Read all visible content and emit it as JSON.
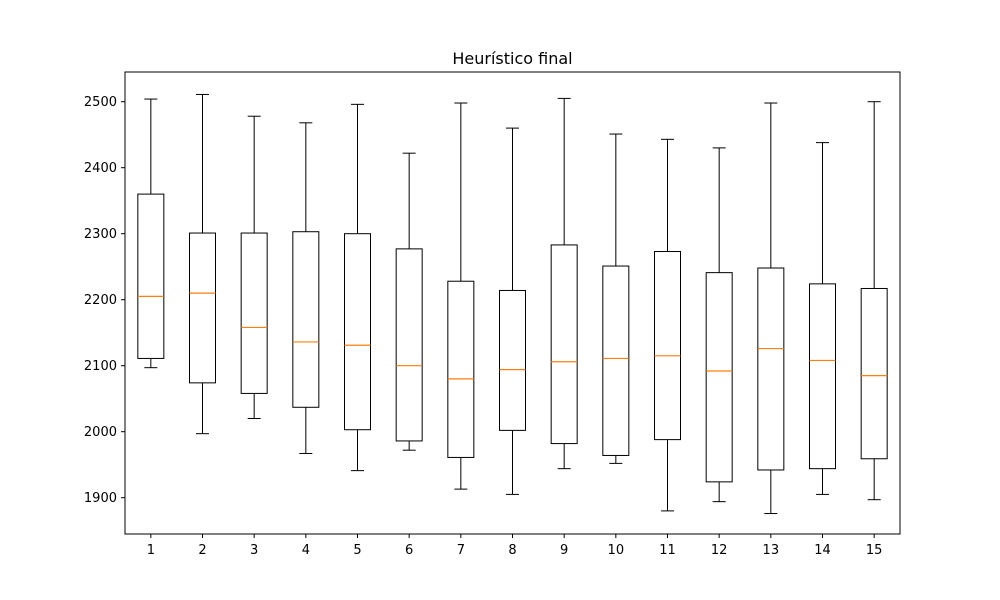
{
  "chart_data": {
    "type": "boxplot",
    "title": "Heurístico final",
    "xlabel": "",
    "ylabel": "",
    "categories": [
      "1",
      "2",
      "3",
      "4",
      "5",
      "6",
      "7",
      "8",
      "9",
      "10",
      "11",
      "12",
      "13",
      "14",
      "15"
    ],
    "ylim": [
      1845,
      2545
    ],
    "yticks": [
      1900,
      2000,
      2100,
      2200,
      2300,
      2400,
      2500
    ],
    "grid": false,
    "colors": {
      "box": "#000000",
      "median": "#ff7f0e",
      "whisker": "#000000"
    },
    "boxes": [
      {
        "label": "1",
        "whislo": 2097,
        "q1": 2111,
        "med": 2205,
        "q3": 2360,
        "whishi": 2504
      },
      {
        "label": "2",
        "whislo": 1997,
        "q1": 2074,
        "med": 2210,
        "q3": 2301,
        "whishi": 2511
      },
      {
        "label": "3",
        "whislo": 2020,
        "q1": 2058,
        "med": 2158,
        "q3": 2301,
        "whishi": 2478
      },
      {
        "label": "4",
        "whislo": 1967,
        "q1": 2037,
        "med": 2136,
        "q3": 2303,
        "whishi": 2468
      },
      {
        "label": "5",
        "whislo": 1941,
        "q1": 2003,
        "med": 2131,
        "q3": 2300,
        "whishi": 2496
      },
      {
        "label": "6",
        "whislo": 1972,
        "q1": 1986,
        "med": 2100,
        "q3": 2277,
        "whishi": 2422
      },
      {
        "label": "7",
        "whislo": 1913,
        "q1": 1961,
        "med": 2080,
        "q3": 2228,
        "whishi": 2498
      },
      {
        "label": "8",
        "whislo": 1905,
        "q1": 2002,
        "med": 2094,
        "q3": 2214,
        "whishi": 2460
      },
      {
        "label": "9",
        "whislo": 1944,
        "q1": 1982,
        "med": 2106,
        "q3": 2283,
        "whishi": 2505
      },
      {
        "label": "10",
        "whislo": 1952,
        "q1": 1964,
        "med": 2111,
        "q3": 2251,
        "whishi": 2451
      },
      {
        "label": "11",
        "whislo": 1880,
        "q1": 1988,
        "med": 2115,
        "q3": 2273,
        "whishi": 2443
      },
      {
        "label": "12",
        "whislo": 1894,
        "q1": 1924,
        "med": 2092,
        "q3": 2241,
        "whishi": 2430
      },
      {
        "label": "13",
        "whislo": 1876,
        "q1": 1942,
        "med": 2126,
        "q3": 2248,
        "whishi": 2498
      },
      {
        "label": "14",
        "whislo": 1905,
        "q1": 1944,
        "med": 2108,
        "q3": 2224,
        "whishi": 2438
      },
      {
        "label": "15",
        "whislo": 1897,
        "q1": 1959,
        "med": 2085,
        "q3": 2217,
        "whishi": 2500
      }
    ]
  }
}
